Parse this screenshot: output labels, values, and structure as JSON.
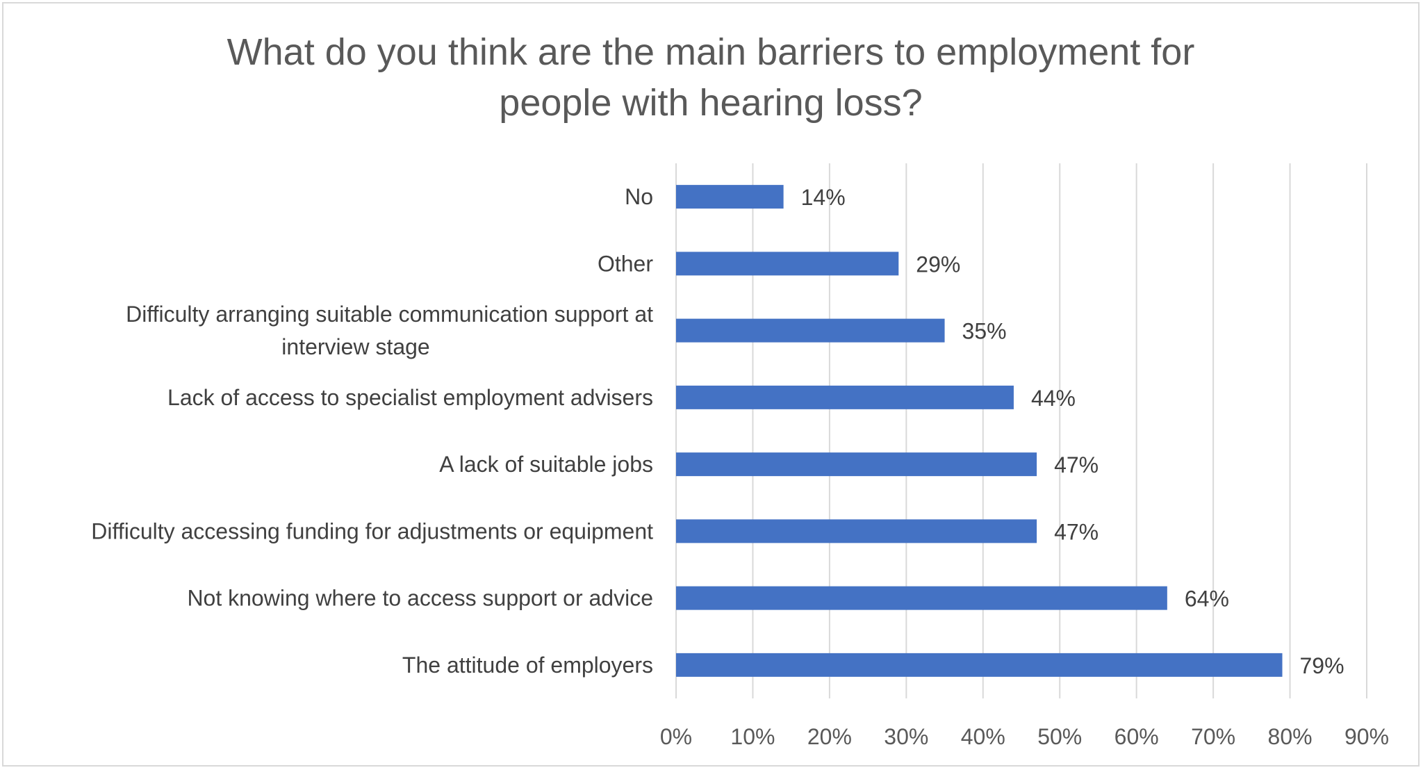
{
  "chart_data": {
    "type": "bar",
    "orientation": "horizontal",
    "title": "What do you think are the main barriers to employment for people with hearing loss?",
    "title_lines": [
      "What do you think are the main barriers to employment for",
      "people with hearing loss?"
    ],
    "categories": [
      "No",
      "Other",
      "Difficulty arranging suitable communication support at interview stage",
      "Lack of access to specialist employment advisers",
      "A lack of suitable jobs",
      "Difficulty accessing funding for adjustments or equipment",
      "Not knowing where to access support or advice",
      "The attitude of employers"
    ],
    "category_lines": [
      [
        "No"
      ],
      [
        "Other"
      ],
      [
        "Difficulty arranging suitable communication support at",
        "interview stage"
      ],
      [
        "Lack of access to specialist employment advisers"
      ],
      [
        "A lack of suitable jobs"
      ],
      [
        "Difficulty accessing funding for adjustments or equipment"
      ],
      [
        "Not knowing where to access support or advice"
      ],
      [
        "The attitude of employers"
      ]
    ],
    "values": [
      14,
      29,
      35,
      44,
      47,
      47,
      64,
      79
    ],
    "data_labels": [
      "14%",
      "29%",
      "35%",
      "44%",
      "47%",
      "47%",
      "64%",
      "79%"
    ],
    "x_ticks": [
      0,
      10,
      20,
      30,
      40,
      50,
      60,
      70,
      80,
      90
    ],
    "x_tick_labels": [
      "0%",
      "10%",
      "20%",
      "30%",
      "40%",
      "50%",
      "60%",
      "70%",
      "80%",
      "90%"
    ],
    "xlim": [
      0,
      90
    ],
    "xlabel": "",
    "ylabel": "",
    "grid": true,
    "legend": "none",
    "colors": {
      "bar": "#4472c4",
      "gridline": "#d9d9d9",
      "title": "#595959",
      "label": "#404040",
      "tick": "#595959",
      "border": "#d9d9d9"
    }
  }
}
